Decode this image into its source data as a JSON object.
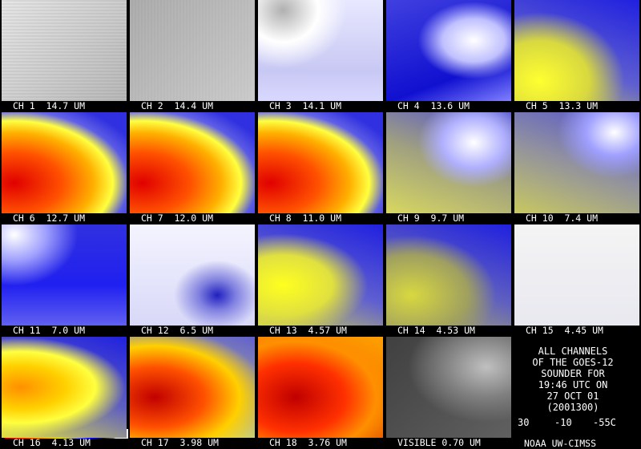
{
  "panels": [
    {
      "label": "CH 1  14.7 UM"
    },
    {
      "label": "CH 2  14.4 UM"
    },
    {
      "label": "CH 3  14.1 UM"
    },
    {
      "label": "CH 4  13.6 UM"
    },
    {
      "label": "CH 5  13.3 UM"
    },
    {
      "label": "CH 6  12.7 UM"
    },
    {
      "label": "CH 7  12.0 UM"
    },
    {
      "label": "CH 8  11.0 UM"
    },
    {
      "label": "CH 9  9.7 UM"
    },
    {
      "label": "CH 10  7.4 UM"
    },
    {
      "label": "CH 11  7.0 UM"
    },
    {
      "label": "CH 12  6.5 UM"
    },
    {
      "label": "CH 13  4.57 UM"
    },
    {
      "label": "CH 14  4.53 UM"
    },
    {
      "label": "CH 15  4.45 UM"
    },
    {
      "label": "CH 16  4.13 UM"
    },
    {
      "label": "CH 17  3.98 UM"
    },
    {
      "label": "CH 18  3.76 UM"
    },
    {
      "label": "VISIBLE 0.70 UM"
    }
  ],
  "info": {
    "lines": [
      "ALL CHANNELS",
      "OF THE GOES-12",
      "SOUNDER FOR",
      "19:46 UTC ON",
      "27 OCT 01",
      "(2001300)"
    ],
    "scale_labels": [
      "30",
      "-10",
      "-55C"
    ],
    "credit": "NOAA UW-CIMSS"
  }
}
